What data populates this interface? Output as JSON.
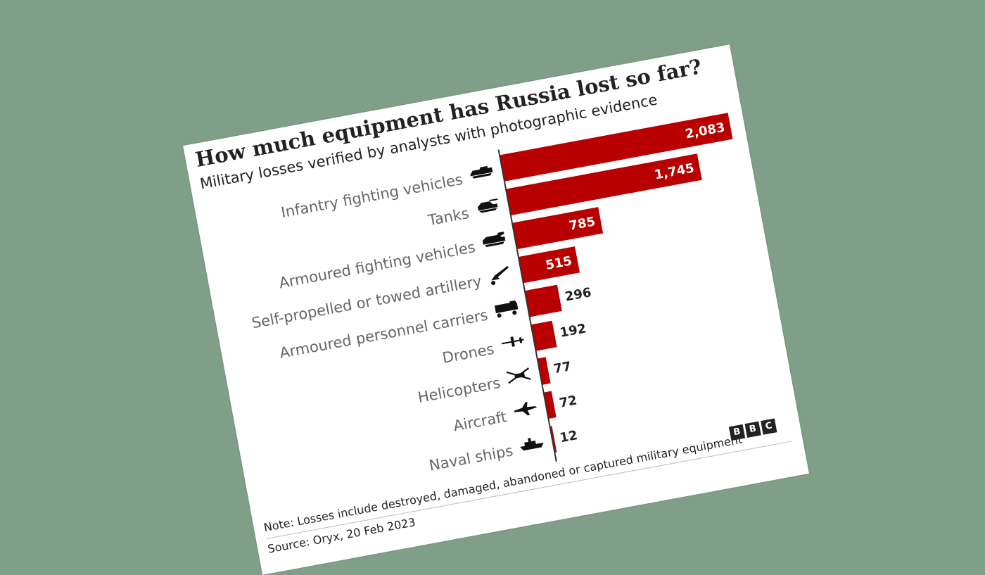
{
  "chart_data": {
    "type": "bar",
    "orientation": "horizontal",
    "title": "How much equipment has Russia lost so far?",
    "subtitle": "Military losses verified by analysts with photographic evidence",
    "categories": [
      "Infantry fighting vehicles",
      "Tanks",
      "Armoured fighting vehicles",
      "Self-propelled or towed artillery",
      "Armoured personnel carriers",
      "Drones",
      "Helicopters",
      "Aircraft",
      "Naval ships"
    ],
    "values": [
      2083,
      1745,
      785,
      515,
      296,
      192,
      77,
      72,
      12
    ],
    "value_labels": [
      "2,083",
      "1,745",
      "785",
      "515",
      "296",
      "192",
      "77",
      "72",
      "12"
    ],
    "icons": [
      "ifv-icon",
      "tank-icon",
      "afv-icon",
      "artillery-icon",
      "apc-icon",
      "drone-icon",
      "helicopter-icon",
      "aircraft-icon",
      "naval-ship-icon"
    ],
    "bar_color": "#b80000",
    "xlim": [
      0,
      2083
    ]
  },
  "footer": {
    "note": "Note: Losses include destroyed, damaged, abandoned or captured military equipment",
    "source": "Source: Oryx, 20 Feb 2023",
    "logo_letters": [
      "B",
      "B",
      "C"
    ]
  }
}
